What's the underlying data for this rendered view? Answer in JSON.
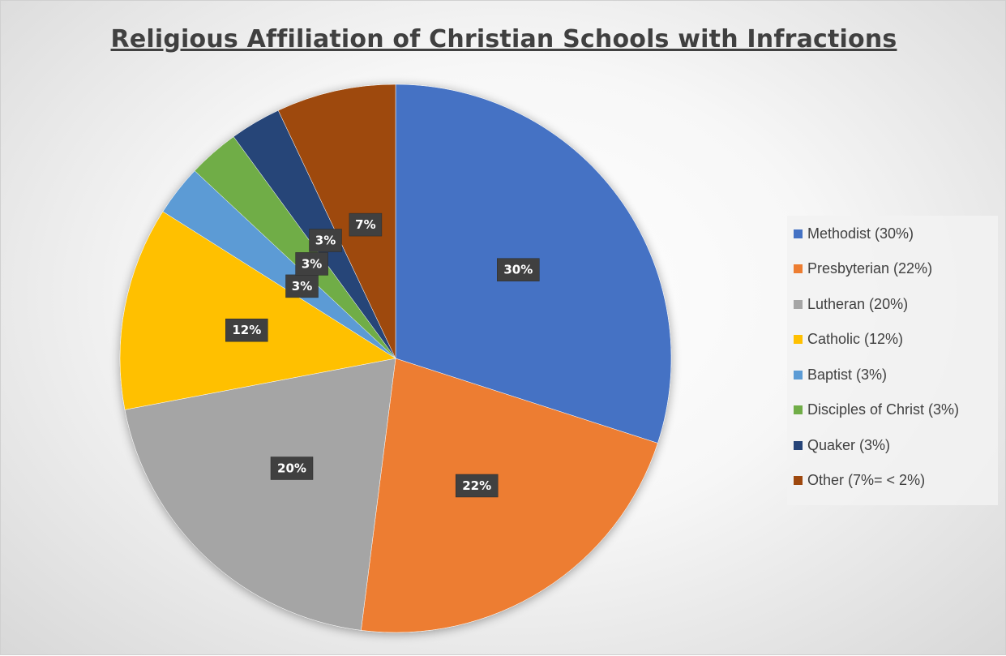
{
  "chart_data": {
    "type": "pie",
    "title": "Religious Affiliation of Christian Schools with Infractions",
    "slices": [
      {
        "name": "Methodist",
        "legend": "Methodist (30%)",
        "value": 30,
        "label": "30%",
        "color": "#4472C4"
      },
      {
        "name": "Presbyterian",
        "legend": "Presbyterian (22%)",
        "value": 22,
        "label": "22%",
        "color": "#ED7D31"
      },
      {
        "name": "Lutheran",
        "legend": "Lutheran (20%)",
        "value": 20,
        "label": "20%",
        "color": "#A5A5A5"
      },
      {
        "name": "Catholic",
        "legend": "Catholic (12%)",
        "value": 12,
        "label": "12%",
        "color": "#FFC000"
      },
      {
        "name": "Baptist",
        "legend": "Baptist (3%)",
        "value": 3,
        "label": "3%",
        "color": "#5B9BD5"
      },
      {
        "name": "Disciples of Christ",
        "legend": "Disciples of Christ (3%)",
        "value": 3,
        "label": "3%",
        "color": "#70AD47"
      },
      {
        "name": "Quaker",
        "legend": "Quaker (3%)",
        "value": 3,
        "label": "3%",
        "color": "#264478"
      },
      {
        "name": "Other",
        "legend": "Other (7%= < 2%)",
        "value": 7,
        "label": "7%",
        "color": "#9E480E"
      }
    ],
    "legend_position": "right"
  }
}
